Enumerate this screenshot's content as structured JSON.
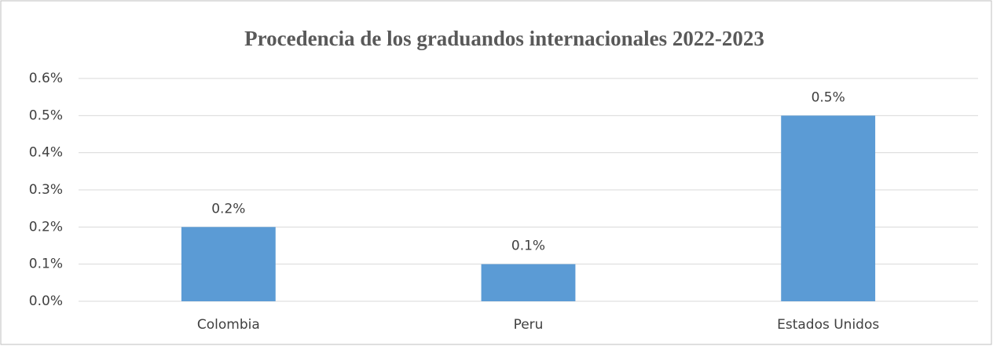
{
  "chart_data": {
    "type": "bar",
    "title": "Procedencia de los graduandos internacionales 2022-2023",
    "categories": [
      "Colombia",
      "Peru",
      "Estados Unidos"
    ],
    "values": [
      0.2,
      0.1,
      0.5
    ],
    "value_labels": [
      "0.2%",
      "0.1%",
      "0.5%"
    ],
    "color": "#5b9bd5",
    "ylim": [
      0,
      0.6
    ],
    "yticks": [
      {
        "value": 0,
        "label": "0.0%"
      },
      {
        "value": 0.1,
        "label": "0.1%"
      },
      {
        "value": 0.2,
        "label": "0.2%"
      },
      {
        "value": 0.3,
        "label": "0.3%"
      },
      {
        "value": 0.4,
        "label": "0.4%"
      },
      {
        "value": 0.5,
        "label": "0.5%"
      },
      {
        "value": 0.6,
        "label": "0.6%"
      }
    ],
    "grid": true
  }
}
